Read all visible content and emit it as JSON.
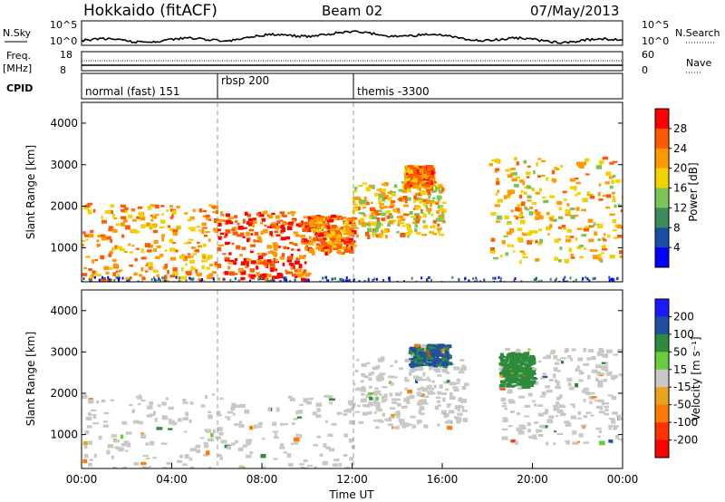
{
  "header": {
    "site": "Hokkaido (fitACF)",
    "beam": "Beam 02",
    "date": "07/May/2013"
  },
  "panels": {
    "nsky": {
      "left_label": "N.Sky",
      "left_ticks": [
        "10^5",
        "10^0"
      ],
      "right_label": "N.Search",
      "right_ticks": [
        "10^5",
        "10^0"
      ]
    },
    "freq": {
      "left_label_1": "Freq.",
      "left_label_2": "[MHz]",
      "left_ticks": [
        "18",
        "8"
      ],
      "right_label": "Nave",
      "right_ticks": [
        "60",
        "0"
      ]
    },
    "cpid": {
      "left_label": "CPID",
      "segments": [
        {
          "label": "normal (fast) 151"
        },
        {
          "label": "rbsp 200"
        },
        {
          "label": "themis -3300"
        }
      ]
    }
  },
  "colors": {
    "power_scale": [
      "#0000ff",
      "#1a4da6",
      "#3c8c5a",
      "#7cc35a",
      "#f2d200",
      "#ff9a00",
      "#ff5a00",
      "#ff0000"
    ],
    "velocity_scale": [
      "#1a1aff",
      "#1f4fa0",
      "#2e8b3d",
      "#6acd3c",
      "#c8c8c4",
      "#e9a21f",
      "#ff7a00",
      "#ff3300",
      "#ff0000"
    ],
    "ground_scatter": "#c8c8c4"
  },
  "chart_data": [
    {
      "type": "heatmap",
      "name_in_figure": "power",
      "ylabel": "Slant Range [km]",
      "x_unit": "UT",
      "xlim": [
        "00:00",
        "24:00"
      ],
      "ylim": [
        180,
        4500
      ],
      "y_ticks": [
        1000,
        2000,
        3000,
        4000
      ],
      "colorbar_label": "Power [dB]",
      "colorbar_ticks": [
        4,
        8,
        12,
        16,
        20,
        24,
        28
      ],
      "echo_regions": [
        {
          "t_start": 0.0,
          "t_end": 6.0,
          "r_low": 200,
          "r_high": 2100,
          "power_db": 24
        },
        {
          "t_start": 6.0,
          "t_end": 10.0,
          "r_low": 250,
          "r_high": 1900,
          "power_db": 28
        },
        {
          "t_start": 10.0,
          "t_end": 12.0,
          "r_low": 900,
          "r_high": 1800,
          "power_db": 26
        },
        {
          "t_start": 12.0,
          "t_end": 16.0,
          "r_low": 1300,
          "r_high": 2600,
          "power_db": 22
        },
        {
          "t_start": 14.3,
          "t_end": 15.5,
          "r_low": 2500,
          "r_high": 3000,
          "power_db": 26
        },
        {
          "t_start": 18.0,
          "t_end": 24.0,
          "r_low": 700,
          "r_high": 3200,
          "power_db": 22
        }
      ]
    },
    {
      "type": "heatmap",
      "name_in_figure": "velocity",
      "ylabel": "Slant Range [km]",
      "xlabel": "Time UT",
      "xlim": [
        "00:00",
        "24:00"
      ],
      "x_ticks": [
        "00:00",
        "04:00",
        "08:00",
        "12:00",
        "16:00",
        "20:00",
        "00:00"
      ],
      "ylim": [
        180,
        4500
      ],
      "y_ticks": [
        1000,
        2000,
        3000,
        4000
      ],
      "colorbar_label": "Velocity [m s⁻¹]",
      "colorbar_ticks": [
        200,
        100,
        50,
        15,
        -15,
        -50,
        -100,
        -200
      ],
      "echo_regions": [
        {
          "t_start": 0.0,
          "t_end": 12.0,
          "r_low": 200,
          "r_high": 2000,
          "velocity": 0
        },
        {
          "t_start": 12.0,
          "t_end": 17.0,
          "r_low": 1200,
          "r_high": 2900,
          "velocity": 0
        },
        {
          "t_start": 14.5,
          "t_end": 16.2,
          "r_low": 2700,
          "r_high": 3200,
          "velocity": 80
        },
        {
          "t_start": 18.5,
          "t_end": 24.0,
          "r_low": 800,
          "r_high": 3100,
          "velocity": 0
        },
        {
          "t_start": 18.5,
          "t_end": 20.0,
          "r_low": 2200,
          "r_high": 3000,
          "velocity": 60
        }
      ]
    }
  ]
}
